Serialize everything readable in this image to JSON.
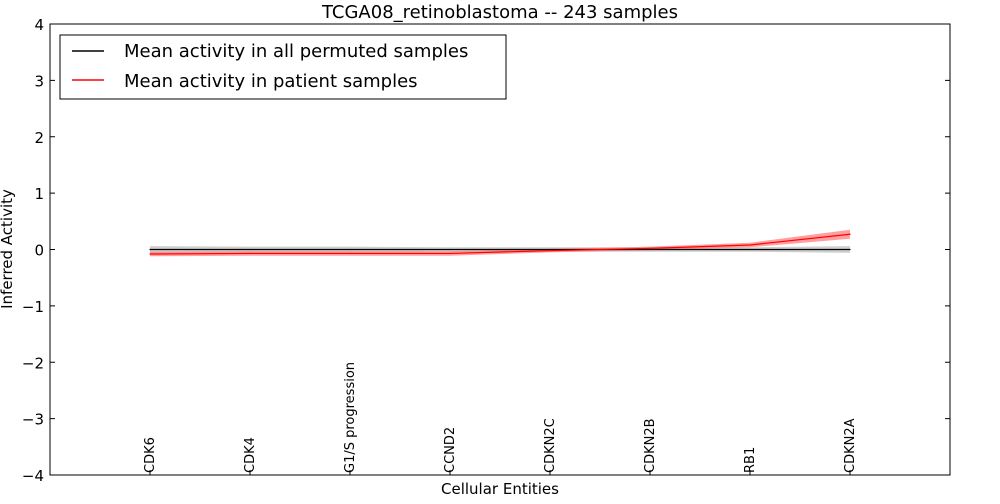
{
  "chart_data": {
    "type": "line",
    "title": "TCGA08_retinoblastoma -- 243 samples",
    "xlabel": "Cellular Entities",
    "ylabel": "Inferred Activity",
    "categories": [
      "CDK6",
      "CDK4",
      "G1/S progression",
      "CCND2",
      "CDKN2C",
      "CDKN2B",
      "RB1",
      "CDKN2A"
    ],
    "ylim": [
      -4,
      4
    ],
    "yticks": [
      {
        "value": 4,
        "label": "4"
      },
      {
        "value": 3,
        "label": "3"
      },
      {
        "value": 2,
        "label": "2"
      },
      {
        "value": 1,
        "label": "1"
      },
      {
        "value": 0,
        "label": "0"
      },
      {
        "value": -1,
        "label": "−1"
      },
      {
        "value": -2,
        "label": "−2"
      },
      {
        "value": -3,
        "label": "−3"
      },
      {
        "value": -4,
        "label": "−4"
      }
    ],
    "legend_position": "top-left",
    "series": [
      {
        "name": "Mean activity in all permuted samples",
        "color": "#000000",
        "band_color": "#bfbfbf",
        "values": [
          0.0,
          0.0,
          0.0,
          0.0,
          0.0,
          0.0,
          0.0,
          0.0
        ],
        "lower": [
          -0.06,
          -0.05,
          -0.05,
          -0.04,
          -0.04,
          -0.04,
          -0.04,
          -0.06
        ],
        "upper": [
          0.06,
          0.05,
          0.05,
          0.04,
          0.04,
          0.04,
          0.04,
          0.06
        ]
      },
      {
        "name": "Mean activity in patient samples",
        "color": "#ff0000",
        "band_color": "#ff7f7f",
        "values": [
          -0.08,
          -0.07,
          -0.07,
          -0.07,
          -0.02,
          0.02,
          0.08,
          0.27
        ],
        "lower": [
          -0.12,
          -0.11,
          -0.11,
          -0.11,
          -0.05,
          -0.01,
          0.04,
          0.19
        ],
        "upper": [
          -0.04,
          -0.03,
          -0.03,
          -0.03,
          0.01,
          0.05,
          0.12,
          0.35
        ]
      }
    ]
  }
}
